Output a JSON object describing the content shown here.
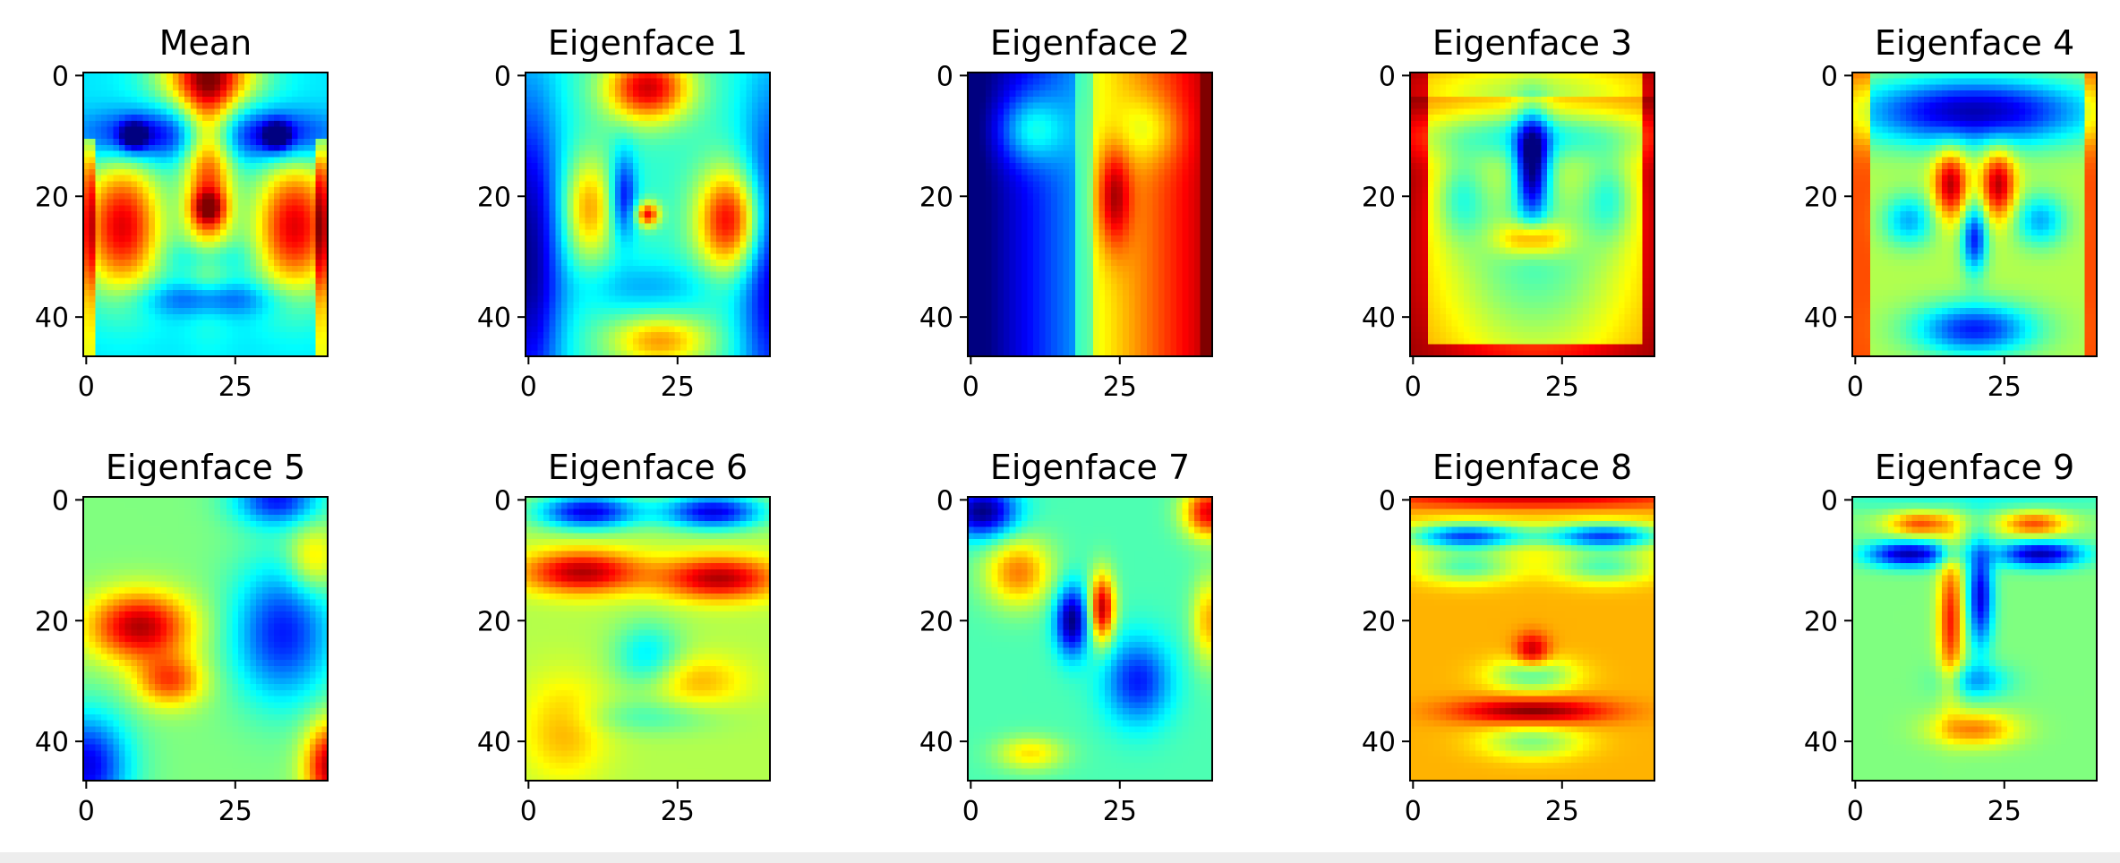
{
  "chart_data": {
    "type": "heatmap",
    "colormap": "jet",
    "grid": false,
    "panels": [
      {
        "title": "Mean",
        "xticks": [
          "0",
          "25"
        ],
        "yticks": [
          "0",
          "20",
          "40"
        ],
        "xlim": [
          0,
          41
        ],
        "ylim": [
          47,
          0
        ]
      },
      {
        "title": "Eigenface 1",
        "xticks": [
          "0",
          "25"
        ],
        "yticks": [
          "0",
          "20",
          "40"
        ],
        "xlim": [
          0,
          41
        ],
        "ylim": [
          47,
          0
        ]
      },
      {
        "title": "Eigenface 2",
        "xticks": [
          "0",
          "25"
        ],
        "yticks": [
          "0",
          "20",
          "40"
        ],
        "xlim": [
          0,
          41
        ],
        "ylim": [
          47,
          0
        ]
      },
      {
        "title": "Eigenface 3",
        "xticks": [
          "0",
          "25"
        ],
        "yticks": [
          "0",
          "20",
          "40"
        ],
        "xlim": [
          0,
          41
        ],
        "ylim": [
          47,
          0
        ]
      },
      {
        "title": "Eigenface 4",
        "xticks": [
          "0",
          "25"
        ],
        "yticks": [
          "0",
          "20",
          "40"
        ],
        "xlim": [
          0,
          41
        ],
        "ylim": [
          47,
          0
        ]
      },
      {
        "title": "Eigenface 5",
        "xticks": [
          "0",
          "25"
        ],
        "yticks": [
          "0",
          "20",
          "40"
        ],
        "xlim": [
          0,
          41
        ],
        "ylim": [
          47,
          0
        ]
      },
      {
        "title": "Eigenface 6",
        "xticks": [
          "0",
          "25"
        ],
        "yticks": [
          "0",
          "20",
          "40"
        ],
        "xlim": [
          0,
          41
        ],
        "ylim": [
          47,
          0
        ]
      },
      {
        "title": "Eigenface 7",
        "xticks": [
          "0",
          "25"
        ],
        "yticks": [
          "0",
          "20",
          "40"
        ],
        "xlim": [
          0,
          41
        ],
        "ylim": [
          47,
          0
        ]
      },
      {
        "title": "Eigenface 8",
        "xticks": [
          "0",
          "25"
        ],
        "yticks": [
          "0",
          "20",
          "40"
        ],
        "xlim": [
          0,
          41
        ],
        "ylim": [
          47,
          0
        ]
      },
      {
        "title": "Eigenface 9",
        "xticks": [
          "0",
          "25"
        ],
        "yticks": [
          "0",
          "20",
          "40"
        ],
        "xlim": [
          0,
          41
        ],
        "ylim": [
          47,
          0
        ]
      }
    ]
  }
}
